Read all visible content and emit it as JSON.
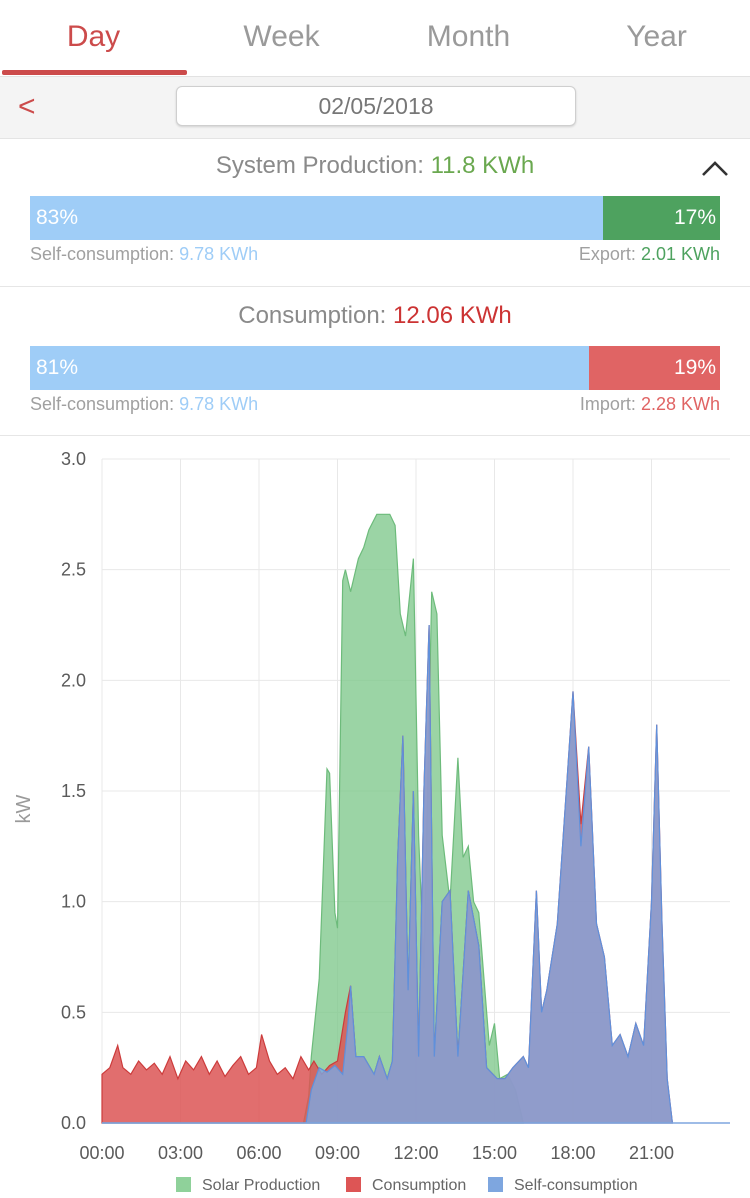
{
  "tabs": [
    {
      "label": "Day",
      "active": true
    },
    {
      "label": "Week",
      "active": false
    },
    {
      "label": "Month",
      "active": false
    },
    {
      "label": "Year",
      "active": false
    }
  ],
  "datebar": {
    "back_glyph": "<",
    "date": "02/05/2018"
  },
  "production": {
    "label": "System Production:",
    "value": "11.8 KWh",
    "self_pct": "83%",
    "export_pct": "17%",
    "self_share": 0.83,
    "self_label": "Self-consumption:",
    "self_value": "9.78 KWh",
    "export_label": "Export:",
    "export_value": "2.01 KWh"
  },
  "consumption": {
    "label": "Consumption:",
    "value": "12.06 KWh",
    "self_pct": "81%",
    "import_pct": "19%",
    "self_share": 0.81,
    "self_label": "Self-consumption:",
    "self_value": "9.78 KWh",
    "import_label": "Import:",
    "import_value": "2.28 KWh"
  },
  "colors": {
    "accent": "#cc4b4b",
    "solar": "#8fd19a",
    "consumption": "#dd5555",
    "self": "#7ea6df"
  },
  "chart_data": {
    "type": "area",
    "ylabel": "kW",
    "xlabel": "",
    "ylim": [
      0,
      3.0
    ],
    "xlim": [
      0,
      24
    ],
    "y_ticks": [
      "0.0",
      "0.5",
      "1.0",
      "1.5",
      "2.0",
      "2.5",
      "3.0"
    ],
    "x_ticks": [
      "00:00",
      "03:00",
      "06:00",
      "09:00",
      "12:00",
      "15:00",
      "18:00",
      "21:00"
    ],
    "grid": true,
    "legend_position": "bottom",
    "series": [
      {
        "name": "Solar Production",
        "color": "#8fd19a",
        "points": [
          [
            0,
            0
          ],
          [
            7.7,
            0
          ],
          [
            7.9,
            0.12
          ],
          [
            8.0,
            0.3
          ],
          [
            8.3,
            0.65
          ],
          [
            8.6,
            1.6
          ],
          [
            8.7,
            1.58
          ],
          [
            8.9,
            0.95
          ],
          [
            9.0,
            0.88
          ],
          [
            9.2,
            2.45
          ],
          [
            9.3,
            2.5
          ],
          [
            9.5,
            2.4
          ],
          [
            9.8,
            2.55
          ],
          [
            10.0,
            2.6
          ],
          [
            10.2,
            2.68
          ],
          [
            10.5,
            2.75
          ],
          [
            11.0,
            2.75
          ],
          [
            11.2,
            2.7
          ],
          [
            11.4,
            2.3
          ],
          [
            11.6,
            2.2
          ],
          [
            11.9,
            2.55
          ],
          [
            12.1,
            1.3
          ],
          [
            12.3,
            0.7
          ],
          [
            12.6,
            2.4
          ],
          [
            12.8,
            2.3
          ],
          [
            13.0,
            1.3
          ],
          [
            13.3,
            1.0
          ],
          [
            13.6,
            1.65
          ],
          [
            13.8,
            1.2
          ],
          [
            14.0,
            1.25
          ],
          [
            14.2,
            1.0
          ],
          [
            14.4,
            0.95
          ],
          [
            14.6,
            0.65
          ],
          [
            14.8,
            0.35
          ],
          [
            15.0,
            0.45
          ],
          [
            15.2,
            0.2
          ],
          [
            15.5,
            0.22
          ],
          [
            15.8,
            0.15
          ],
          [
            16.0,
            0.05
          ],
          [
            16.1,
            0
          ]
        ]
      },
      {
        "name": "Consumption",
        "color": "#dd5555",
        "points": [
          [
            0,
            0.22
          ],
          [
            0.3,
            0.25
          ],
          [
            0.6,
            0.35
          ],
          [
            0.8,
            0.25
          ],
          [
            1.1,
            0.22
          ],
          [
            1.4,
            0.28
          ],
          [
            1.7,
            0.24
          ],
          [
            2.0,
            0.27
          ],
          [
            2.3,
            0.22
          ],
          [
            2.6,
            0.3
          ],
          [
            2.9,
            0.2
          ],
          [
            3.2,
            0.28
          ],
          [
            3.5,
            0.24
          ],
          [
            3.8,
            0.3
          ],
          [
            4.1,
            0.22
          ],
          [
            4.4,
            0.28
          ],
          [
            4.7,
            0.21
          ],
          [
            5.0,
            0.26
          ],
          [
            5.3,
            0.3
          ],
          [
            5.6,
            0.22
          ],
          [
            5.9,
            0.25
          ],
          [
            6.1,
            0.4
          ],
          [
            6.4,
            0.28
          ],
          [
            6.7,
            0.22
          ],
          [
            7.0,
            0.25
          ],
          [
            7.3,
            0.2
          ],
          [
            7.6,
            0.3
          ],
          [
            7.9,
            0.24
          ],
          [
            8.1,
            0.28
          ],
          [
            8.4,
            0.22
          ],
          [
            8.7,
            0.26
          ],
          [
            9.0,
            0.28
          ],
          [
            9.3,
            0.5
          ],
          [
            9.5,
            0.62
          ],
          [
            9.7,
            0.3
          ],
          [
            10.0,
            0.3
          ],
          [
            10.4,
            0.22
          ],
          [
            10.6,
            0.3
          ],
          [
            10.9,
            0.2
          ],
          [
            11.1,
            0.28
          ],
          [
            11.3,
            1.2
          ],
          [
            11.5,
            1.75
          ],
          [
            11.7,
            0.6
          ],
          [
            11.9,
            1.5
          ],
          [
            12.1,
            0.3
          ],
          [
            12.3,
            1.5
          ],
          [
            12.5,
            2.25
          ],
          [
            12.7,
            0.3
          ],
          [
            13.0,
            1.0
          ],
          [
            13.3,
            1.05
          ],
          [
            13.6,
            0.3
          ],
          [
            14.0,
            1.05
          ],
          [
            14.4,
            0.8
          ],
          [
            14.7,
            0.25
          ],
          [
            15.1,
            0.2
          ],
          [
            15.4,
            0.2
          ],
          [
            15.7,
            0.25
          ],
          [
            16.1,
            0.3
          ],
          [
            16.3,
            0.25
          ],
          [
            16.6,
            1.05
          ],
          [
            16.8,
            0.5
          ],
          [
            17.0,
            0.6
          ],
          [
            17.4,
            0.9
          ],
          [
            17.8,
            1.6
          ],
          [
            18.0,
            1.95
          ],
          [
            18.3,
            1.35
          ],
          [
            18.6,
            1.7
          ],
          [
            18.9,
            0.9
          ],
          [
            19.2,
            0.75
          ],
          [
            19.5,
            0.35
          ],
          [
            19.8,
            0.4
          ],
          [
            20.1,
            0.3
          ],
          [
            20.4,
            0.45
          ],
          [
            20.7,
            0.35
          ],
          [
            21.0,
            1.0
          ],
          [
            21.2,
            1.8
          ],
          [
            21.4,
            0.9
          ],
          [
            21.6,
            0.2
          ],
          [
            21.8,
            0
          ]
        ]
      },
      {
        "name": "Self-consumption",
        "color": "#7ea6df",
        "points": [
          [
            0,
            0
          ],
          [
            7.8,
            0
          ],
          [
            8.0,
            0.15
          ],
          [
            8.3,
            0.25
          ],
          [
            8.6,
            0.23
          ],
          [
            8.9,
            0.26
          ],
          [
            9.2,
            0.22
          ],
          [
            9.4,
            0.45
          ],
          [
            9.5,
            0.62
          ],
          [
            9.7,
            0.3
          ],
          [
            10.0,
            0.3
          ],
          [
            10.4,
            0.22
          ],
          [
            10.6,
            0.3
          ],
          [
            10.9,
            0.2
          ],
          [
            11.1,
            0.28
          ],
          [
            11.3,
            1.2
          ],
          [
            11.5,
            1.75
          ],
          [
            11.7,
            0.6
          ],
          [
            11.9,
            1.5
          ],
          [
            12.1,
            0.3
          ],
          [
            12.3,
            1.5
          ],
          [
            12.5,
            2.25
          ],
          [
            12.7,
            0.3
          ],
          [
            13.0,
            1.0
          ],
          [
            13.3,
            1.05
          ],
          [
            13.6,
            0.3
          ],
          [
            14.0,
            1.05
          ],
          [
            14.4,
            0.8
          ],
          [
            14.7,
            0.25
          ],
          [
            15.1,
            0.2
          ],
          [
            15.4,
            0.2
          ],
          [
            15.7,
            0.25
          ],
          [
            16.1,
            0.3
          ],
          [
            16.3,
            0.25
          ],
          [
            16.6,
            1.05
          ],
          [
            16.8,
            0.5
          ],
          [
            17.0,
            0.6
          ],
          [
            17.4,
            0.9
          ],
          [
            17.8,
            1.6
          ],
          [
            18.0,
            1.95
          ],
          [
            18.3,
            1.25
          ],
          [
            18.6,
            1.7
          ],
          [
            18.9,
            0.9
          ],
          [
            19.2,
            0.75
          ],
          [
            19.5,
            0.35
          ],
          [
            19.8,
            0.4
          ],
          [
            20.1,
            0.3
          ],
          [
            20.4,
            0.45
          ],
          [
            20.7,
            0.35
          ],
          [
            21.0,
            1.0
          ],
          [
            21.2,
            1.8
          ],
          [
            21.4,
            0.9
          ],
          [
            21.6,
            0.2
          ],
          [
            21.8,
            0
          ]
        ]
      }
    ]
  }
}
